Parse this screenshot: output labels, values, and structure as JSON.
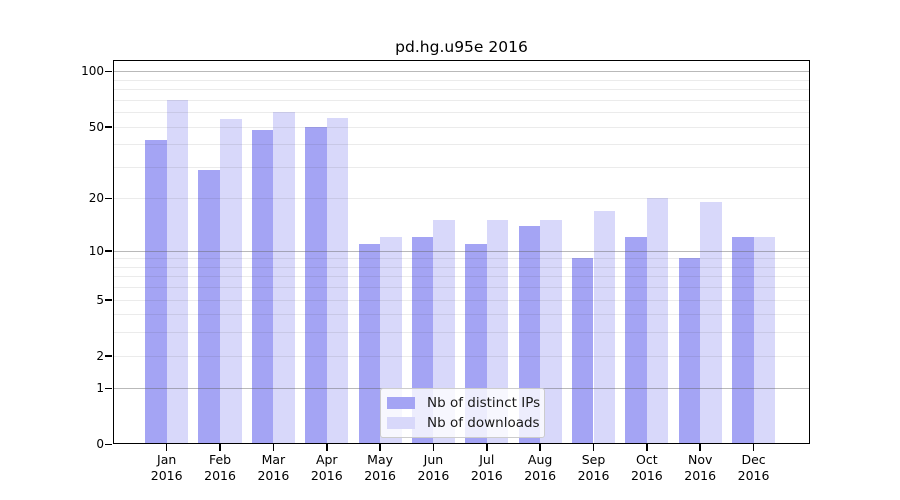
{
  "title": "pd.hg.u95e 2016",
  "colors": {
    "ips": "#a4a4f4",
    "downloads": "#d8d8fa",
    "grid_decade": "rgba(100,100,100,0.45)",
    "grid_minor": "rgba(60,60,60,0.10)",
    "axis": "#000000",
    "background": "#ffffff"
  },
  "legend": {
    "items": [
      {
        "label": "Nb of distinct IPs",
        "color_key": "ips"
      },
      {
        "label": "Nb of downloads",
        "color_key": "downloads"
      }
    ]
  },
  "y_axis": {
    "tick_labels": [
      "100",
      "50",
      "20",
      "10",
      "5",
      "2",
      "1",
      "0"
    ],
    "tick_values": [
      100,
      50,
      20,
      10,
      5,
      2,
      1,
      0
    ]
  },
  "x_axis": {
    "months": [
      "Jan",
      "Feb",
      "Mar",
      "Apr",
      "May",
      "Jun",
      "Jul",
      "Aug",
      "Sep",
      "Oct",
      "Nov",
      "Dec"
    ],
    "year": "2016"
  },
  "chart_data": {
    "type": "bar",
    "title": "pd.hg.u95e 2016",
    "categories": [
      "Jan 2016",
      "Feb 2016",
      "Mar 2016",
      "Apr 2016",
      "May 2016",
      "Jun 2016",
      "Jul 2016",
      "Aug 2016",
      "Sep 2016",
      "Oct 2016",
      "Nov 2016",
      "Dec 2016"
    ],
    "series": [
      {
        "name": "Nb of distinct IPs",
        "values": [
          42,
          29,
          48,
          50,
          11,
          12,
          11,
          14,
          9,
          12,
          9,
          12
        ]
      },
      {
        "name": "Nb of downloads",
        "values": [
          70,
          55,
          60,
          56,
          12,
          15,
          15,
          15,
          17,
          20,
          19,
          12
        ]
      }
    ],
    "y_scale": "log1p",
    "ylim": [
      0,
      115
    ],
    "y_ticks": [
      0,
      1,
      2,
      5,
      10,
      20,
      50,
      100
    ],
    "grid": true,
    "legend_position": "inside-bottom-center",
    "xlabel": "",
    "ylabel": ""
  }
}
